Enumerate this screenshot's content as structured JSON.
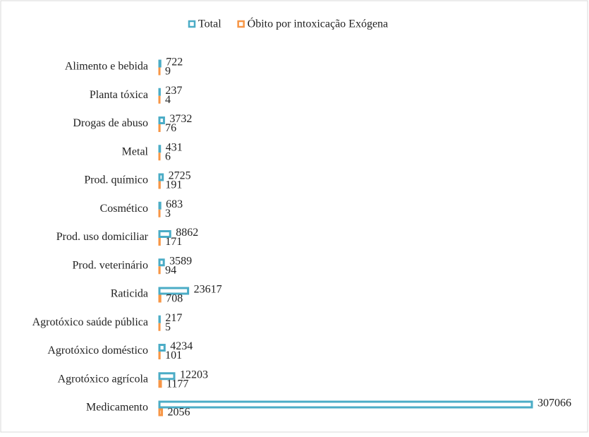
{
  "chart_data": {
    "type": "bar",
    "orientation": "horizontal",
    "categories": [
      "Alimento e bebida",
      "Planta tóxica",
      "Drogas de abuso",
      "Metal",
      "Prod. químico",
      "Cosmético",
      "Prod. uso domiciliar",
      "Prod. veterinário",
      "Raticida",
      "Agrotóxico saúde pública",
      "Agrotóxico doméstico",
      "Agrotóxico agrícola",
      "Medicamento"
    ],
    "series": [
      {
        "name": "Total",
        "color": "#4bacc6",
        "values": [
          722,
          237,
          3732,
          431,
          2725,
          683,
          8862,
          3589,
          23617,
          217,
          4234,
          12203,
          307066
        ]
      },
      {
        "name": "Óbito por intoxicação Exógena",
        "color": "#f79646",
        "values": [
          9,
          4,
          76,
          6,
          191,
          3,
          171,
          94,
          708,
          5,
          101,
          1177,
          2056
        ]
      }
    ],
    "legend": "top"
  }
}
